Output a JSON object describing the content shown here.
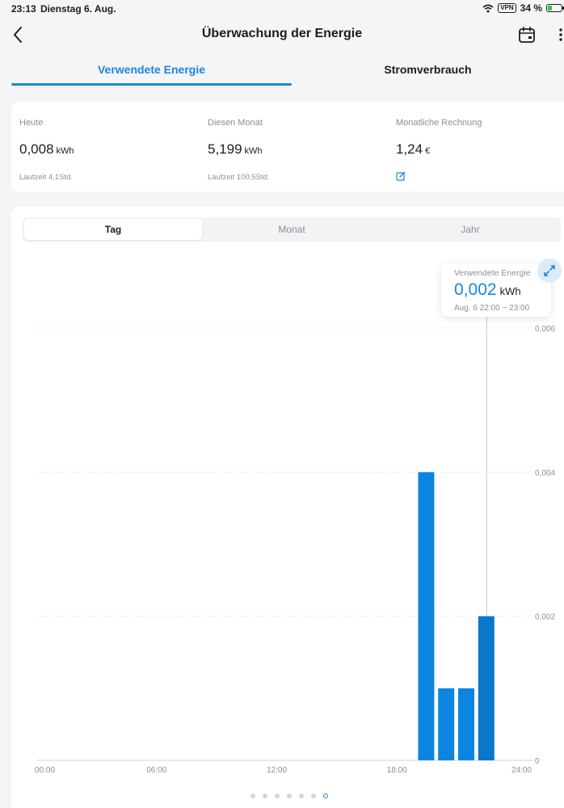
{
  "status_bar": {
    "time": "23:13",
    "date": "Dienstag 6. Aug.",
    "vpn": "VPN",
    "battery": "34 %",
    "battery_level": 0.34
  },
  "header": {
    "title": "Überwachung der Energie",
    "icons": [
      "chevron-left-icon",
      "calendar-icon",
      "more-vertical-icon"
    ]
  },
  "tabs": [
    {
      "label": "Verwendete Energie",
      "active": true
    },
    {
      "label": "Stromverbrauch",
      "active": false
    }
  ],
  "stats": {
    "today": {
      "label": "Heute",
      "value": "0,008",
      "unit": "kWh",
      "sub": "Laufzeit 4,1Std."
    },
    "month": {
      "label": "Diesen Monat",
      "value": "5,199",
      "unit": "kWh",
      "sub": "Laufzeit 100,5Std."
    },
    "bill": {
      "label": "Monatliche Rechnung",
      "value": "1,24",
      "unit": "€",
      "icon": "edit-icon"
    }
  },
  "period_tabs": [
    {
      "label": "Tag",
      "active": true
    },
    {
      "label": "Monat",
      "active": false
    },
    {
      "label": "Jahr",
      "active": false
    }
  ],
  "tooltip": {
    "label": "Verwendete Energie",
    "value": "0,002",
    "unit": "kWh",
    "range": "Aug. 6 22:00 ~ 23:00"
  },
  "colors": {
    "accent": "#1a86db",
    "bar": "#0b85e0",
    "bar_selected": "#0a77c9"
  },
  "chart_data": {
    "type": "bar",
    "x_ticks": [
      "00:00",
      "06:00",
      "12:00",
      "18:00",
      "24:00"
    ],
    "y_ticks": [
      "0",
      "0,002",
      "0,004",
      "0,006"
    ],
    "ylim": [
      0,
      0.006
    ],
    "x_hours": [
      19,
      20,
      21,
      22
    ],
    "values": [
      0.004,
      0.001,
      0.001,
      0.002
    ],
    "selected_hour": 22,
    "grid": true
  },
  "pager": {
    "count": 7,
    "active_index": 6
  }
}
